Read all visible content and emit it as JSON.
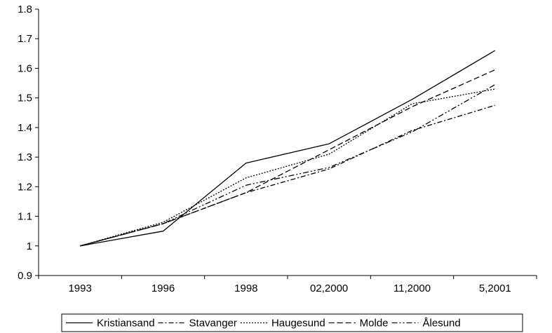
{
  "chart_data": {
    "type": "line",
    "categories": [
      "1993",
      "1996",
      "1998",
      "02,2000",
      "11,2000",
      "5,2001"
    ],
    "ylim": [
      0.9,
      1.8
    ],
    "yticks": [
      "0.9",
      "1",
      "1.1",
      "1.2",
      "1.3",
      "1.4",
      "1.5",
      "1.6",
      "1.7",
      "1.8"
    ],
    "grid": false,
    "legend_position": "bottom",
    "series": [
      {
        "name": "Kristiansand",
        "values": [
          1.0,
          1.05,
          1.28,
          1.345,
          1.495,
          1.66
        ],
        "dash": "solid"
      },
      {
        "name": "Stavanger",
        "values": [
          1.0,
          1.075,
          1.18,
          1.26,
          1.39,
          1.475
        ],
        "dash": "dashdot"
      },
      {
        "name": "Haugesund",
        "values": [
          1.0,
          1.08,
          1.23,
          1.31,
          1.48,
          1.53
        ],
        "dash": "dotted"
      },
      {
        "name": "Molde",
        "values": [
          1.0,
          1.075,
          1.18,
          1.325,
          1.47,
          1.595
        ],
        "dash": "dashed"
      },
      {
        "name": "Ålesund",
        "values": [
          1.0,
          1.075,
          1.205,
          1.265,
          1.385,
          1.545
        ],
        "dash": "dashdotdot"
      }
    ]
  }
}
